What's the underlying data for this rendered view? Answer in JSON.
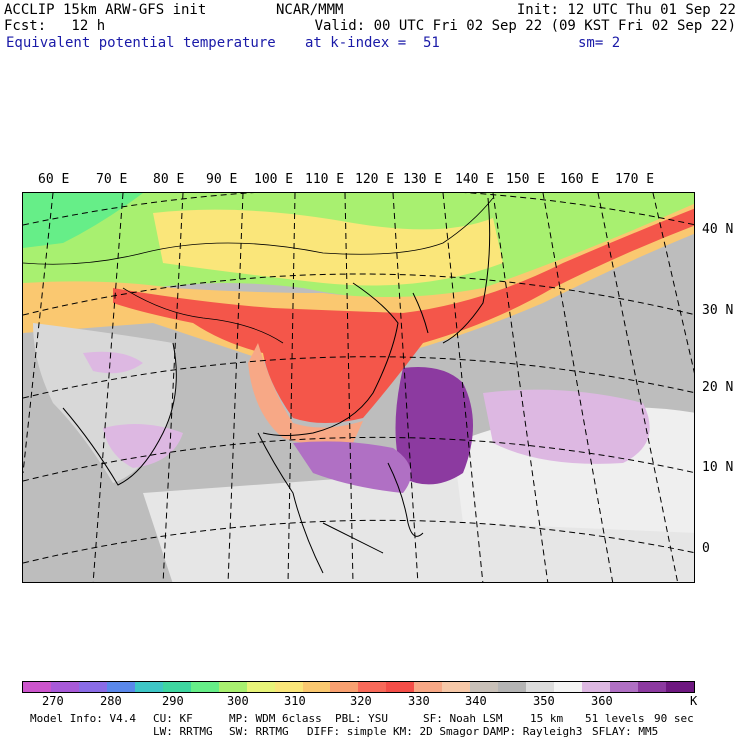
{
  "header": {
    "line1_left": "ACCLIP 15km ARW-GFS init",
    "line1_mid": "NCAR/MMM",
    "line1_right": "Init: 12 UTC Thu 01 Sep 22",
    "line2_left": "Fcst:   12 h",
    "line2_right": "Valid: 00 UTC Fri 02 Sep 22 (09 KST Fri 02 Sep 22)",
    "line3_left": "Equivalent potential temperature",
    "line3_mid": "at k-index =  51",
    "line3_right": "sm= 2"
  },
  "map": {
    "lon_labels": [
      "60 E",
      "70 E",
      "80 E",
      "90 E",
      "100 E",
      "110 E",
      "120 E",
      "130 E",
      "140 E",
      "150 E",
      "160 E",
      "170 E"
    ],
    "lat_labels": [
      "40 N",
      "30 N",
      "20 N",
      "10 N",
      "0"
    ]
  },
  "colorbar": {
    "colors": [
      "#cc55cc",
      "#a85ad8",
      "#8a6ce6",
      "#5a88ea",
      "#3ec6c6",
      "#3ed6a0",
      "#66ee88",
      "#a8f070",
      "#e8f47a",
      "#fae67a",
      "#fac870",
      "#f8a070",
      "#f86a5a",
      "#f44e48",
      "#f7a886",
      "#f6c8a8",
      "#c8c0b8",
      "#b4b4b4",
      "#dcdcdc",
      "#f4f4f4",
      "#ddb8e2",
      "#b070c4",
      "#8c3aa0",
      "#6e1880"
    ],
    "ticks": [
      "270",
      "280",
      "290",
      "300",
      "310",
      "320",
      "330",
      "340",
      "350",
      "360"
    ],
    "unit": "K"
  },
  "footer": {
    "line1": [
      "Model Info: V4.4",
      "CU: KF",
      "MP: WDM 6class",
      "PBL: YSU",
      "SF: Noah LSM",
      "15 km",
      "51 levels",
      "90 sec"
    ],
    "line2": [
      "LW: RRTMG",
      "SW: RRTMG",
      "DIFF: simple",
      "KM: 2D Smagor",
      "DAMP: Rayleigh3",
      "SFLAY: MM5"
    ]
  }
}
